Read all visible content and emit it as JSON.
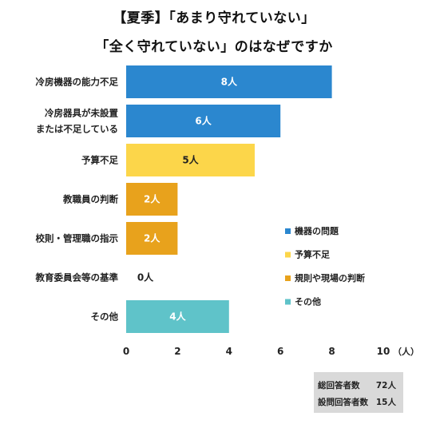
{
  "title": {
    "line1": "【夏季】「あまり守れていない」",
    "line2": "「全く守れていない」のはなぜですか"
  },
  "chart_data": {
    "type": "bar",
    "orientation": "horizontal",
    "categories": [
      [
        "冷房機器の能力不足"
      ],
      [
        "冷房器具が未設置",
        "または不足している"
      ],
      [
        "予算不足"
      ],
      [
        "教職員の判断"
      ],
      [
        "校則・管理職の指示"
      ],
      [
        "教育委員会等の基準"
      ],
      [
        "その他"
      ]
    ],
    "values": [
      8,
      6,
      5,
      2,
      2,
      0,
      4
    ],
    "data_labels": [
      "8人",
      "6人",
      "5人",
      "2人",
      "2人",
      "0人",
      "4人"
    ],
    "groups": [
      "機器の問題",
      "機器の問題",
      "予算不足",
      "規則や現場の判断",
      "規則や現場の判断",
      "規則や現場の判断",
      "その他"
    ],
    "xlim": [
      0,
      10
    ],
    "xticks": [
      "0",
      "2",
      "4",
      "6",
      "8",
      "10"
    ],
    "xunit": "（人）",
    "grid": false,
    "legend_position": "right",
    "legend": [
      {
        "name": "機器の問題",
        "color": "#2b87cf"
      },
      {
        "name": "予算不足",
        "color": "#fcd64a"
      },
      {
        "name": "規則や現場の判断",
        "color": "#e8a21c"
      },
      {
        "name": "その他",
        "color": "#5fc3c9"
      }
    ]
  },
  "summary": [
    {
      "label": "総回答者数",
      "value": "72人"
    },
    {
      "label": "設問回答者数",
      "value": "15人"
    }
  ]
}
